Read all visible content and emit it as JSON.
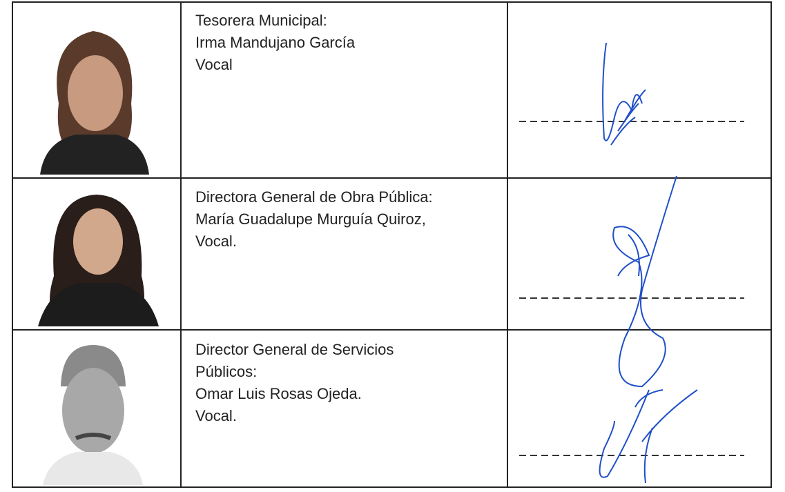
{
  "table": {
    "rows": [
      {
        "lines": [
          "Tesorera Municipal:",
          "Irma Mandujano García",
          "Vocal"
        ]
      },
      {
        "lines": [
          "Directora General de Obra Pública:",
          "María Guadalupe Murguía Quiroz,",
          "Vocal."
        ]
      },
      {
        "lines": [
          "Director General de Servicios",
          "Públicos:",
          "Omar Luis Rosas Ojeda.",
          "Vocal."
        ]
      }
    ]
  }
}
